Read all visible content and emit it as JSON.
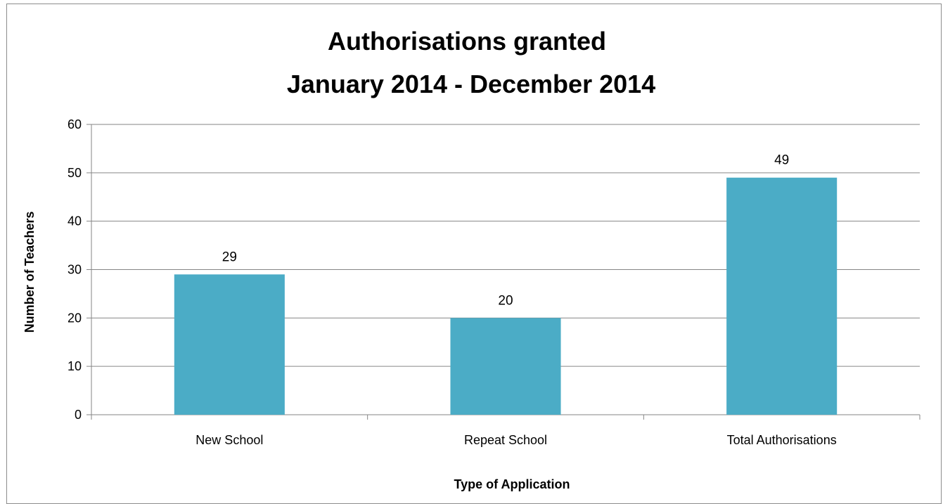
{
  "chart_data": {
    "type": "bar",
    "title": [
      "Authorisations granted",
      "January 2014 - December 2014"
    ],
    "xlabel": "Type of Application",
    "ylabel": "Number of Teachers",
    "categories": [
      "New School",
      "Repeat School",
      "Total Authorisations"
    ],
    "values": [
      29,
      20,
      49
    ],
    "data_labels": [
      "29",
      "20",
      "49"
    ],
    "ylim": [
      0,
      60
    ],
    "yticks": [
      0,
      10,
      20,
      30,
      40,
      50,
      60
    ],
    "grid": true,
    "legend": "none",
    "bar_color": "#4BACC6",
    "gridline_color": "#868686"
  }
}
